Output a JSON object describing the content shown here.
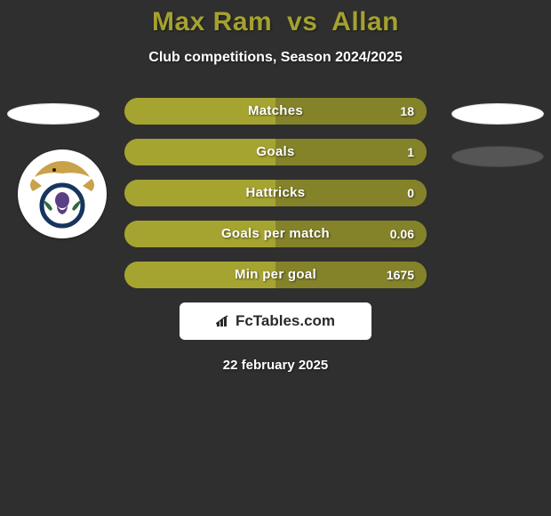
{
  "background_color": "#2f2f2f",
  "title": {
    "player_a": "Max Ram",
    "vs": "vs",
    "player_b": "Allan",
    "color": "#a4a12f",
    "fontsize": 30
  },
  "subtitle": {
    "text": "Club competitions, Season 2024/2025",
    "color": "#ffffff",
    "fontsize": 16
  },
  "side_badges": {
    "left": {
      "fill": "#ffffff",
      "border": "#dcdcdc"
    },
    "right_primary": {
      "fill": "#ffffff",
      "border": "#dcdcdc"
    },
    "right_secondary": {
      "fill": "#555555",
      "border": "#444444"
    }
  },
  "crest": {
    "outer_bg": "#ffffff",
    "eagle_color": "#c9a24a",
    "thistle_color": "#5a3f82",
    "leaf_color": "#2f6b3a",
    "ring_color": "#18345e"
  },
  "bars": {
    "height": 30,
    "radius": 16,
    "gap": 16,
    "left_fill_color": "#a6a431",
    "right_fill_color": "#85832a",
    "track_color": "#85832a",
    "label_color": "#ffffff",
    "value_color": "#ffffff",
    "label_fontsize": 15,
    "value_fontsize": 14,
    "items": [
      {
        "label": "Matches",
        "value_right": "18",
        "left_pct": 50,
        "right_pct": 50
      },
      {
        "label": "Goals",
        "value_right": "1",
        "left_pct": 50,
        "right_pct": 50
      },
      {
        "label": "Hattricks",
        "value_right": "0",
        "left_pct": 50,
        "right_pct": 50
      },
      {
        "label": "Goals per match",
        "value_right": "0.06",
        "left_pct": 50,
        "right_pct": 50
      },
      {
        "label": "Min per goal",
        "value_right": "1675",
        "left_pct": 50,
        "right_pct": 50
      }
    ]
  },
  "footer_logo": {
    "bg": "#ffffff",
    "icon_color": "#2a2a2a",
    "text": "FcTables.com",
    "text_color": "#2a2a2a",
    "fontsize": 17
  },
  "footer_date": {
    "text": "22 february 2025",
    "color": "#ffffff",
    "fontsize": 15
  }
}
